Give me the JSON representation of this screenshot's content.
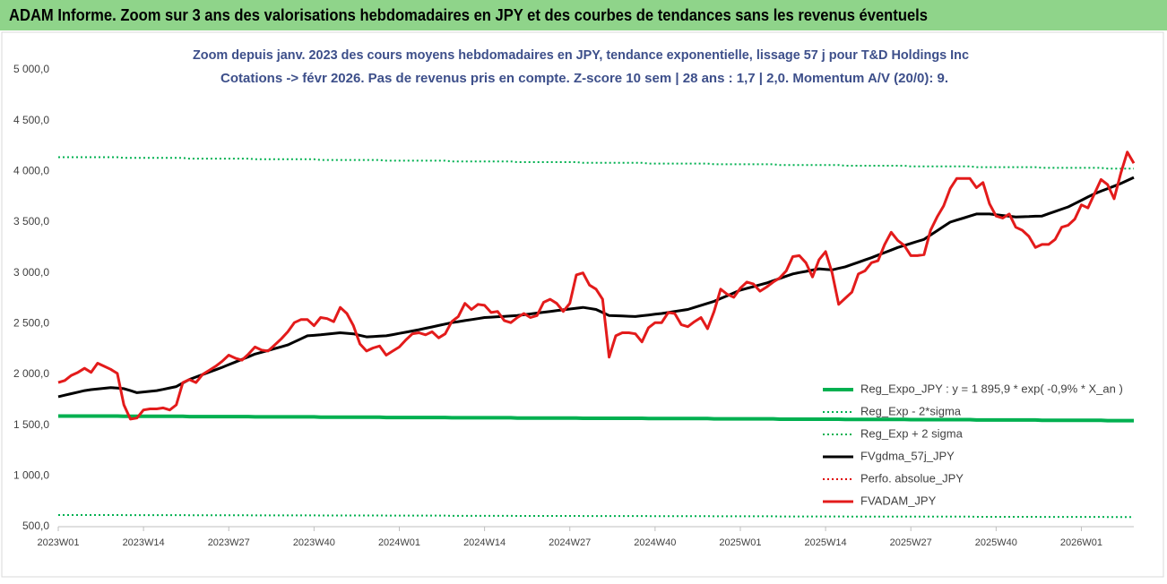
{
  "header": {
    "title": "ADAM Informe. Zoom sur 3 ans des valorisations hebdomadaires en JPY et des courbes de tendances sans les revenus éventuels"
  },
  "chart_data": {
    "type": "line",
    "title": "Zoom depuis janv. 2023 des cours moyens hebdomadaires en JPY, tendance exponentielle, lissage 57 j pour T&D Holdings Inc",
    "subtitle": "Cotations -> févr 2026.  Pas de revenus pris en compte. Z-score 10 sem | 28 ans : 1,7 | 2,0. Momentum A/V (20/0): 9.",
    "grid": false,
    "legend": "lower right",
    "ylim": [
      500,
      5000
    ],
    "yticks": [
      {
        "value": 500,
        "label": "500,0"
      },
      {
        "value": 1000,
        "label": "1 000,0"
      },
      {
        "value": 1500,
        "label": "1 500,0"
      },
      {
        "value": 2000,
        "label": "2 000,0"
      },
      {
        "value": 2500,
        "label": "2 500,0"
      },
      {
        "value": 3000,
        "label": "3 000,0"
      },
      {
        "value": 3500,
        "label": "3 500,0"
      },
      {
        "value": 4000,
        "label": "4 000,0"
      },
      {
        "value": 4500,
        "label": "4 500,0"
      },
      {
        "value": 5000,
        "label": "5 000,0"
      }
    ],
    "categories": [
      "2023W01",
      null,
      null,
      null,
      null,
      null,
      null,
      null,
      null,
      null,
      null,
      null,
      null,
      "2023W14",
      null,
      null,
      null,
      null,
      null,
      null,
      null,
      null,
      null,
      null,
      null,
      null,
      "2023W27",
      null,
      null,
      null,
      null,
      null,
      null,
      null,
      null,
      null,
      null,
      null,
      null,
      "2023W40",
      null,
      null,
      null,
      null,
      null,
      null,
      null,
      null,
      null,
      null,
      null,
      null,
      "2024W01",
      null,
      null,
      null,
      null,
      null,
      null,
      null,
      null,
      null,
      null,
      null,
      null,
      "2024W14",
      null,
      null,
      null,
      null,
      null,
      null,
      null,
      null,
      null,
      null,
      null,
      null,
      "2024W27",
      null,
      null,
      null,
      null,
      null,
      null,
      null,
      null,
      null,
      null,
      null,
      null,
      "2024W40",
      null,
      null,
      null,
      null,
      null,
      null,
      null,
      null,
      null,
      null,
      null,
      null,
      "2025W01",
      null,
      null,
      null,
      null,
      null,
      null,
      null,
      null,
      null,
      null,
      null,
      null,
      "2025W14",
      null,
      null,
      null,
      null,
      null,
      null,
      null,
      null,
      null,
      null,
      null,
      null,
      "2025W27",
      null,
      null,
      null,
      null,
      null,
      null,
      null,
      null,
      null,
      null,
      null,
      null,
      "2025W40",
      null,
      null,
      null,
      null,
      null,
      null,
      null,
      null,
      null,
      null,
      null,
      null,
      "2026W01",
      null,
      null,
      null,
      null,
      null,
      null,
      null,
      null
    ],
    "series": [
      {
        "name": "Reg_Expo_JPY : y = 1 895,9 * exp( -0,9% *  X_an )",
        "color": "#00b050",
        "width": 4,
        "dash": "solid",
        "values": [
          1590,
          1590,
          1590,
          1590,
          1590,
          1590,
          1590,
          1590,
          1590,
          1590,
          1587,
          1587,
          1587,
          1587,
          1587,
          1587,
          1587,
          1587,
          1587,
          1587,
          1584,
          1584,
          1584,
          1584,
          1584,
          1584,
          1584,
          1584,
          1584,
          1584,
          1582,
          1582,
          1582,
          1582,
          1582,
          1582,
          1582,
          1582,
          1582,
          1582,
          1579,
          1579,
          1579,
          1579,
          1579,
          1579,
          1579,
          1579,
          1579,
          1579,
          1576,
          1576,
          1576,
          1576,
          1576,
          1576,
          1576,
          1576,
          1576,
          1576,
          1573,
          1573,
          1573,
          1573,
          1573,
          1573,
          1573,
          1573,
          1573,
          1573,
          1570,
          1570,
          1570,
          1570,
          1570,
          1570,
          1570,
          1570,
          1570,
          1570,
          1568,
          1568,
          1568,
          1568,
          1568,
          1568,
          1568,
          1568,
          1568,
          1568,
          1565,
          1565,
          1565,
          1565,
          1565,
          1565,
          1565,
          1565,
          1565,
          1565,
          1562,
          1562,
          1562,
          1562,
          1562,
          1562,
          1562,
          1562,
          1562,
          1562,
          1559,
          1559,
          1559,
          1559,
          1559,
          1559,
          1559,
          1559,
          1559,
          1559,
          1556,
          1556,
          1556,
          1556,
          1556,
          1556,
          1556,
          1556,
          1556,
          1556,
          1554,
          1554,
          1554,
          1554,
          1554,
          1554,
          1554,
          1554,
          1554,
          1554,
          1551,
          1551,
          1551,
          1551,
          1551,
          1551,
          1551,
          1551,
          1551,
          1551,
          1548,
          1548,
          1548,
          1548,
          1548,
          1548,
          1548,
          1548,
          1548,
          1548,
          1545,
          1545,
          1545,
          1545,
          1545
        ]
      },
      {
        "name": "Reg_Exp - 2*sigma",
        "color": "#00b050",
        "width": 2,
        "dash": "dotted",
        "values": [
          615,
          615,
          615,
          615,
          615,
          615,
          615,
          615,
          615,
          615,
          614,
          614,
          614,
          614,
          614,
          614,
          614,
          614,
          614,
          614,
          612,
          612,
          612,
          612,
          612,
          612,
          612,
          612,
          612,
          612,
          611,
          611,
          611,
          611,
          611,
          611,
          611,
          611,
          611,
          611,
          610,
          610,
          610,
          610,
          610,
          610,
          610,
          610,
          610,
          610,
          609,
          609,
          609,
          609,
          609,
          609,
          609,
          609,
          609,
          609,
          607,
          607,
          607,
          607,
          607,
          607,
          607,
          607,
          607,
          607,
          606,
          606,
          606,
          606,
          606,
          606,
          606,
          606,
          606,
          606,
          605,
          605,
          605,
          605,
          605,
          605,
          605,
          605,
          605,
          605,
          604,
          604,
          604,
          604,
          604,
          604,
          604,
          604,
          604,
          604,
          602,
          602,
          602,
          602,
          602,
          602,
          602,
          602,
          602,
          602,
          601,
          601,
          601,
          601,
          601,
          601,
          601,
          601,
          601,
          601,
          600,
          600,
          600,
          600,
          600,
          600,
          600,
          600,
          600,
          600,
          599,
          599,
          599,
          599,
          599,
          599,
          599,
          599,
          599,
          599,
          597,
          597,
          597,
          597,
          597,
          597,
          597,
          597,
          597,
          597,
          596,
          596,
          596,
          596,
          596,
          596,
          596,
          596,
          596,
          596,
          595,
          595,
          595,
          595,
          595
        ]
      },
      {
        "name": "Reg_Exp + 2 sigma",
        "color": "#00b050",
        "width": 2,
        "dash": "dotted",
        "values": [
          4140,
          4140,
          4140,
          4140,
          4140,
          4140,
          4140,
          4140,
          4140,
          4140,
          4133,
          4133,
          4133,
          4133,
          4133,
          4133,
          4133,
          4133,
          4133,
          4133,
          4126,
          4126,
          4126,
          4126,
          4126,
          4126,
          4126,
          4126,
          4126,
          4126,
          4119,
          4119,
          4119,
          4119,
          4119,
          4119,
          4119,
          4119,
          4119,
          4119,
          4112,
          4112,
          4112,
          4112,
          4112,
          4112,
          4112,
          4112,
          4112,
          4112,
          4105,
          4105,
          4105,
          4105,
          4105,
          4105,
          4105,
          4105,
          4105,
          4105,
          4098,
          4098,
          4098,
          4098,
          4098,
          4098,
          4098,
          4098,
          4098,
          4098,
          4091,
          4091,
          4091,
          4091,
          4091,
          4091,
          4091,
          4091,
          4091,
          4091,
          4084,
          4084,
          4084,
          4084,
          4084,
          4084,
          4084,
          4084,
          4084,
          4084,
          4077,
          4077,
          4077,
          4077,
          4077,
          4077,
          4077,
          4077,
          4077,
          4077,
          4070,
          4070,
          4070,
          4070,
          4070,
          4070,
          4070,
          4070,
          4070,
          4070,
          4063,
          4063,
          4063,
          4063,
          4063,
          4063,
          4063,
          4063,
          4063,
          4063,
          4056,
          4056,
          4056,
          4056,
          4056,
          4056,
          4056,
          4056,
          4056,
          4056,
          4049,
          4049,
          4049,
          4049,
          4049,
          4049,
          4049,
          4049,
          4049,
          4049,
          4042,
          4042,
          4042,
          4042,
          4042,
          4042,
          4042,
          4042,
          4042,
          4042,
          4035,
          4035,
          4035,
          4035,
          4035,
          4035,
          4035,
          4035,
          4035,
          4035,
          4028,
          4028,
          4028,
          4028,
          4028
        ]
      },
      {
        "name": "FVgdma_57j_JPY",
        "color": "#000000",
        "width": 3,
        "dash": "solid",
        "values": [
          1780,
          1795,
          1810,
          1825,
          1840,
          1850,
          1857,
          1863,
          1870,
          1865,
          1860,
          1840,
          1820,
          1827,
          1833,
          1840,
          1853,
          1867,
          1880,
          1915,
          1950,
          1974,
          1998,
          2022,
          2046,
          2070,
          2096,
          2122,
          2148,
          2174,
          2200,
          2218,
          2236,
          2254,
          2272,
          2290,
          2320,
          2350,
          2380,
          2385,
          2390,
          2397,
          2403,
          2410,
          2405,
          2400,
          2385,
          2370,
          2373,
          2377,
          2380,
          2392,
          2404,
          2416,
          2428,
          2440,
          2454,
          2468,
          2482,
          2496,
          2510,
          2520,
          2530,
          2540,
          2550,
          2560,
          2564,
          2568,
          2572,
          2576,
          2580,
          2588,
          2596,
          2604,
          2612,
          2620,
          2628,
          2636,
          2644,
          2652,
          2660,
          2650,
          2640,
          2610,
          2580,
          2578,
          2575,
          2573,
          2570,
          2578,
          2585,
          2593,
          2600,
          2610,
          2620,
          2630,
          2640,
          2660,
          2680,
          2700,
          2720,
          2748,
          2775,
          2803,
          2830,
          2848,
          2865,
          2883,
          2900,
          2923,
          2945,
          2968,
          2990,
          3003,
          3015,
          3028,
          3040,
          3035,
          3030,
          3045,
          3060,
          3083,
          3105,
          3128,
          3150,
          3175,
          3200,
          3225,
          3250,
          3270,
          3290,
          3310,
          3330,
          3373,
          3415,
          3458,
          3500,
          3520,
          3540,
          3560,
          3580,
          3580,
          3580,
          3573,
          3565,
          3558,
          3550,
          3553,
          3555,
          3558,
          3560,
          3583,
          3605,
          3628,
          3650,
          3683,
          3715,
          3748,
          3780,
          3805,
          3830,
          3855,
          3880,
          3910,
          3940
        ]
      },
      {
        "name": "Perfo. absolue_JPY",
        "color": "#e00000",
        "width": 2,
        "dash": "dotted",
        "values": [
          null,
          null,
          null,
          null,
          null,
          null,
          null,
          null,
          null,
          null,
          null,
          null,
          null,
          null,
          null,
          null,
          null,
          null,
          null,
          null,
          null,
          null,
          null,
          null,
          null,
          null,
          null,
          null,
          null,
          null,
          null,
          null,
          null,
          null,
          null,
          null,
          null,
          null,
          null,
          null,
          null,
          null,
          null,
          null,
          null,
          null,
          null,
          null,
          null,
          null,
          null,
          null,
          null,
          null,
          null,
          null,
          null,
          null,
          null,
          null,
          null,
          null,
          null,
          null,
          null,
          null,
          null,
          null,
          null,
          null,
          null,
          null,
          null,
          null,
          null,
          null,
          null,
          null,
          null,
          null,
          null,
          null,
          null,
          null,
          null,
          null,
          null,
          null,
          null,
          null,
          null,
          null,
          null,
          null,
          null,
          null,
          null,
          null,
          null,
          null,
          null,
          null,
          null,
          null,
          null,
          null,
          null,
          null,
          null,
          null,
          null,
          null,
          null,
          null,
          null,
          null,
          null,
          null,
          null,
          null,
          null,
          null,
          null,
          null,
          null,
          null,
          null,
          null,
          null,
          null,
          null,
          null,
          null,
          null,
          null,
          null,
          null,
          null,
          null,
          null,
          null,
          null,
          null,
          null,
          null,
          null,
          null,
          null,
          null,
          null,
          null,
          null,
          null,
          null,
          null,
          null,
          null,
          null,
          null,
          null,
          null,
          null,
          null,
          null,
          null
        ]
      },
      {
        "name": "FVADAM_JPY",
        "color": "#e31b1b",
        "width": 3,
        "dash": "solid",
        "values": [
          1920,
          1940,
          1990,
          2020,
          2060,
          2020,
          2110,
          2080,
          2050,
          2010,
          1700,
          1560,
          1570,
          1650,
          1660,
          1660,
          1670,
          1650,
          1700,
          1920,
          1950,
          1920,
          2000,
          2040,
          2080,
          2130,
          2190,
          2160,
          2140,
          2200,
          2270,
          2240,
          2230,
          2290,
          2350,
          2420,
          2510,
          2540,
          2540,
          2480,
          2560,
          2550,
          2520,
          2660,
          2600,
          2480,
          2300,
          2230,
          2260,
          2280,
          2190,
          2230,
          2270,
          2340,
          2400,
          2410,
          2390,
          2420,
          2360,
          2400,
          2520,
          2570,
          2700,
          2640,
          2690,
          2680,
          2610,
          2620,
          2530,
          2510,
          2560,
          2600,
          2560,
          2580,
          2710,
          2740,
          2700,
          2620,
          2700,
          2980,
          3000,
          2880,
          2840,
          2740,
          2170,
          2380,
          2410,
          2410,
          2400,
          2320,
          2460,
          2510,
          2510,
          2610,
          2600,
          2490,
          2470,
          2520,
          2560,
          2450,
          2620,
          2840,
          2790,
          2760,
          2850,
          2910,
          2890,
          2820,
          2860,
          2910,
          2950,
          3020,
          3160,
          3170,
          3100,
          2960,
          3130,
          3210,
          3000,
          2690,
          2750,
          2810,
          2990,
          3020,
          3100,
          3120,
          3280,
          3400,
          3320,
          3270,
          3170,
          3170,
          3180,
          3420,
          3550,
          3660,
          3830,
          3930,
          3930,
          3930,
          3840,
          3890,
          3680,
          3560,
          3540,
          3580,
          3450,
          3420,
          3360,
          3250,
          3280,
          3280,
          3330,
          3450,
          3470,
          3530,
          3670,
          3640,
          3780,
          3920,
          3870,
          3730,
          3980,
          4190,
          4080
        ]
      }
    ]
  }
}
